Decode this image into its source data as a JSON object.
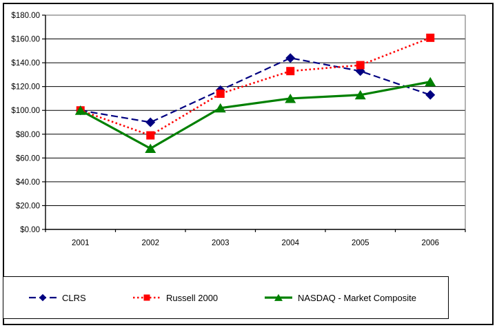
{
  "chart_data": {
    "type": "line",
    "title": "",
    "xlabel": "",
    "ylabel": "",
    "categories": [
      "2001",
      "2002",
      "2003",
      "2004",
      "2005",
      "2006"
    ],
    "series": [
      {
        "name": "CLRS",
        "color": "#000080",
        "marker": "diamond",
        "line_style": "dashed",
        "values": [
          100,
          90,
          117,
          144,
          133,
          113
        ]
      },
      {
        "name": "Russell 2000",
        "color": "#FF0000",
        "marker": "square",
        "line_style": "dotted",
        "values": [
          100,
          79,
          114,
          133,
          138,
          161
        ]
      },
      {
        "name": "NASDAQ - Market Composite",
        "color": "#008000",
        "marker": "triangle",
        "line_style": "solid",
        "values": [
          100,
          68,
          102,
          110,
          113,
          124
        ]
      }
    ],
    "y_axis": {
      "min": 0,
      "max": 180,
      "step": 20,
      "tick_values": [
        0,
        20,
        40,
        60,
        80,
        100,
        120,
        140,
        160,
        180
      ],
      "tick_labels": [
        "$0.00",
        "$20.00",
        "$40.00",
        "$60.00",
        "$80.00",
        "$100.00",
        "$120.00",
        "$140.00",
        "$160.00",
        "$180.00"
      ]
    },
    "ylim": [
      0,
      180
    ],
    "grid": true,
    "legend_position": "bottom"
  },
  "colors": {
    "gridline": "#000000",
    "plot_border": "#808080",
    "axis": "#000000",
    "frame_border": "#000000",
    "background": "#FFFFFF",
    "text": "#000000"
  }
}
